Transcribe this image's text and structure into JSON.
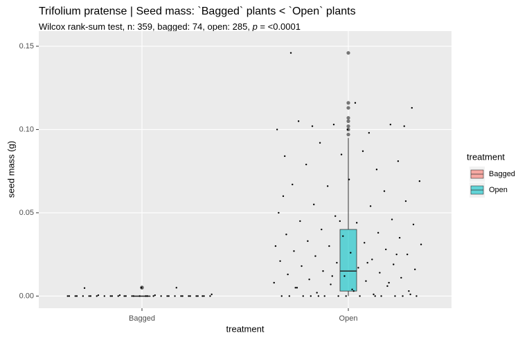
{
  "chart_data": {
    "type": "box",
    "title": "Trifolium pratense | Seed mass: `Bagged` plants < `Open` plants",
    "subtitle": [
      "Wilcox rank-sum test, n: 359, bagged: 74, open: 285, ",
      "p",
      " = <0.0001"
    ],
    "x_label": "treatment",
    "y_label": "seed mass (g)",
    "legend_title": "treatment",
    "legend": "right",
    "grid": true,
    "categories": [
      "Bagged",
      "Open"
    ],
    "ylim": [
      -0.0073,
      0.1591
    ],
    "yticks": [
      {
        "value": 0,
        "label": "0.00"
      },
      {
        "value": 0.05,
        "label": "0.05"
      },
      {
        "value": 0.1,
        "label": "0.10"
      },
      {
        "value": 0.15,
        "label": "0.15"
      }
    ],
    "series": [
      {
        "name": "Bagged",
        "color": "#F8766D",
        "whisker_low": 0,
        "q1": 0,
        "median": 0,
        "q3": 0,
        "whisker_high": 0,
        "outliers": [
          0.005,
          0.0052
        ],
        "points": [
          0,
          0,
          0,
          0,
          0,
          0,
          0,
          0,
          0,
          0,
          0,
          0,
          0,
          0,
          0,
          0,
          0,
          0,
          0,
          0,
          0,
          0,
          0,
          0,
          0,
          0,
          0,
          0,
          0,
          0,
          0,
          0,
          0.0005,
          0.0005,
          0.001,
          0.0005,
          0.005,
          0.0048,
          0.005,
          0
        ]
      },
      {
        "name": "Open",
        "color": "#00BFC4",
        "whisker_low": 0,
        "q1": 0.003,
        "median": 0.015,
        "q3": 0.04,
        "whisker_high": 0.095,
        "outliers": [
          0.097,
          0.1,
          0.102,
          0.105,
          0.107,
          0.113,
          0.116,
          0.146
        ],
        "points": [
          0.146,
          0.1,
          0.102,
          0.102,
          0.098,
          0.1,
          0.103,
          0.103,
          0.105,
          0.116,
          0.113,
          0.092,
          0.076,
          0.084,
          0.085,
          0.081,
          0.079,
          0.087,
          0.069,
          0.066,
          0.063,
          0.067,
          0.07,
          0.057,
          0.055,
          0.054,
          0.05,
          0.048,
          0.046,
          0.045,
          0.044,
          0.043,
          0.04,
          0.038,
          0.037,
          0.036,
          0.035,
          0.033,
          0.032,
          0.031,
          0.03,
          0.028,
          0.027,
          0.026,
          0.025,
          0.024,
          0.022,
          0.021,
          0.02,
          0.019,
          0.018,
          0.017,
          0.016,
          0.015,
          0.014,
          0.013,
          0.012,
          0.011,
          0.01,
          0.009,
          0.008,
          0.007,
          0.006,
          0.005,
          0.004,
          0.003,
          0.002,
          0.001,
          0,
          0,
          0,
          0,
          0,
          0,
          0,
          0,
          0,
          0,
          0,
          0,
          0.02,
          0.03,
          0.012,
          0.008,
          0.005,
          0.003,
          0.001,
          0,
          0,
          0.06,
          0.045,
          0.025
        ]
      }
    ]
  }
}
